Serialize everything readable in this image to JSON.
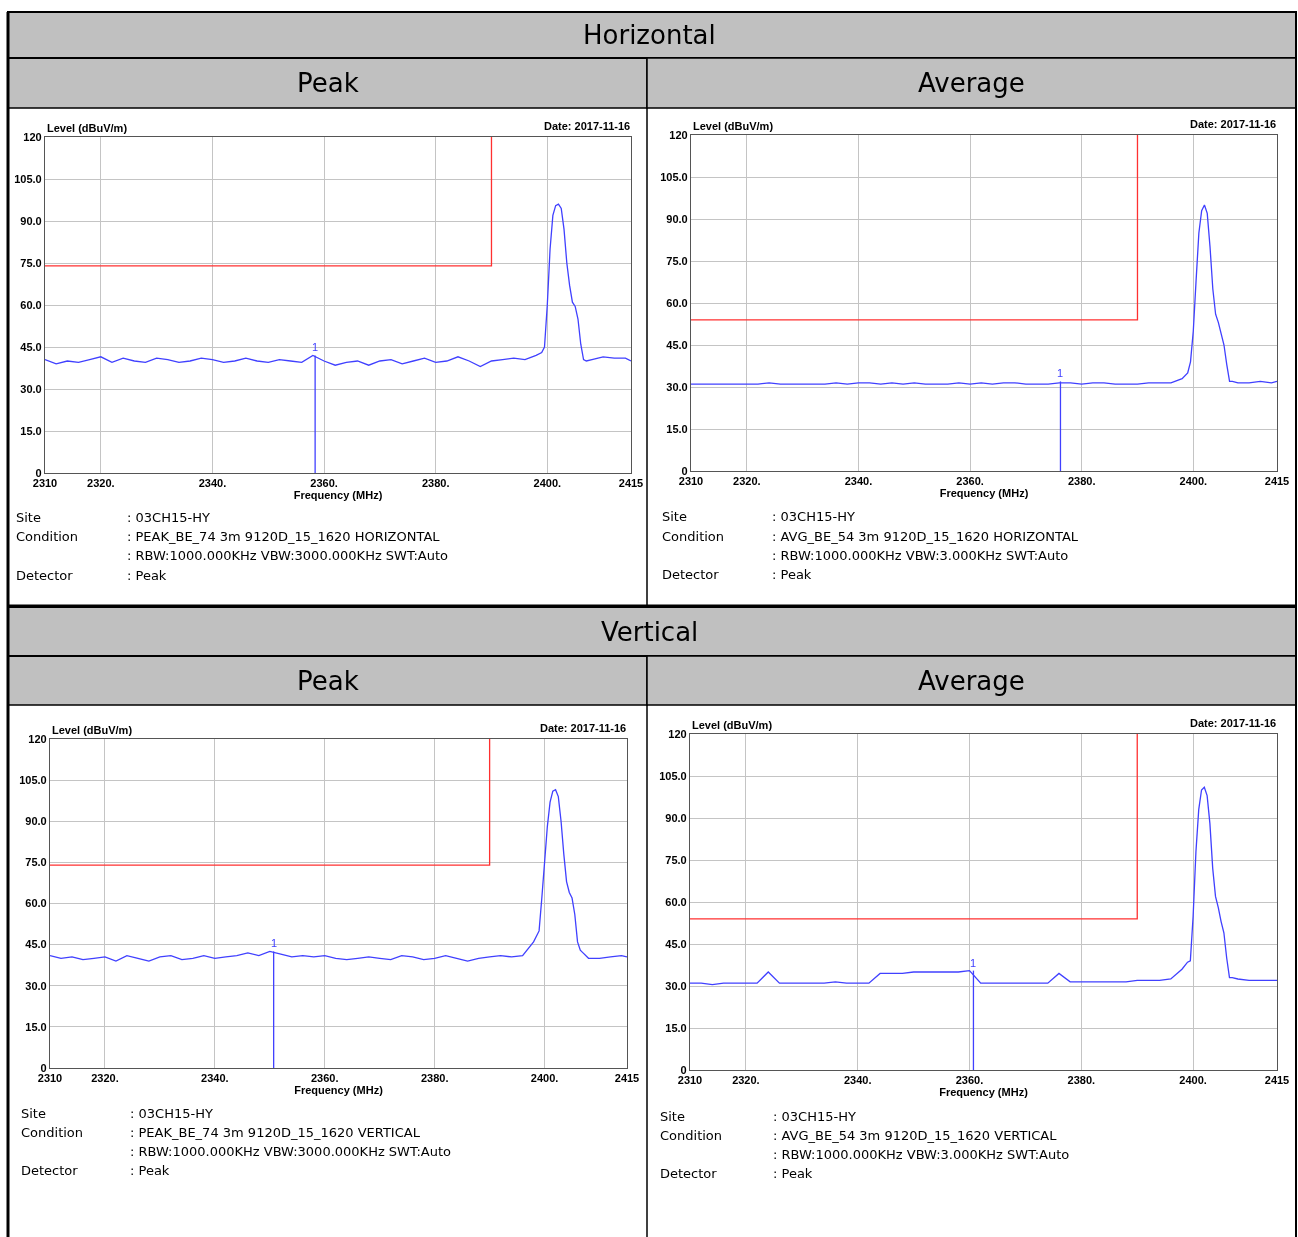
{
  "chart_data": [
    {
      "type": "line",
      "title": "Peak",
      "subtitle": "Horizontal",
      "xlabel": "Frequency (MHz)",
      "ylabel": "Level (dBuV/m)",
      "annotations": [
        "Date: 2017-11-16",
        "Site",
        ": 03CH15-HY",
        "Condition",
        ": PEAK_BE_74 3m 9120D_15_1620 HORIZONTAL",
        ": RBW:1000.000KHz VBW:3000.000KHz SWT:Auto",
        "Detector",
        ": Peak",
        {
          "text": "1",
          "x": 2358.4,
          "y": 42
        }
      ],
      "xlim": [
        2310,
        2415
      ],
      "xticks": [
        2310,
        {
          "value": 2320,
          "label": "2320."
        },
        {
          "value": 2340,
          "label": "2340."
        },
        {
          "value": 2360,
          "label": "2360."
        },
        {
          "value": 2380,
          "label": "2380."
        },
        {
          "value": 2400,
          "label": "2400."
        },
        2415
      ],
      "ylim": [
        0,
        120
      ],
      "yticks": [
        0,
        {
          "value": 15,
          "label": "15.0"
        },
        {
          "value": 30,
          "label": "30.0"
        },
        {
          "value": 45,
          "label": "45.0"
        },
        {
          "value": 60,
          "label": "60.0"
        },
        {
          "value": 75,
          "label": "75.0"
        },
        {
          "value": 90,
          "label": "90.0"
        },
        {
          "value": 105,
          "label": "105.0"
        },
        120
      ],
      "grid": true,
      "series": [
        {
          "color": "#4040ff",
          "x": [
            2310,
            2312,
            2314,
            2316,
            2318,
            2320,
            2322,
            2324,
            2326,
            2328,
            2330,
            2332,
            2334,
            2336,
            2338,
            2340,
            2342,
            2344,
            2346,
            2348,
            2350,
            2352,
            2354,
            2356,
            2358,
            2360,
            2362,
            2364,
            2366,
            2368,
            2370,
            2372,
            2374,
            2376,
            2378,
            2380,
            2382,
            2384,
            2386,
            2388,
            2390,
            2392,
            2394,
            2396,
            2398,
            2399,
            2399.5,
            2400,
            2400.5,
            2401,
            2401.5,
            2402,
            2402.5,
            2403,
            2403.5,
            2404,
            2404.5,
            2405,
            2405.5,
            2406,
            2406.5,
            2407,
            2408,
            2410,
            2412,
            2414,
            2415
          ],
          "values": [
            40.5,
            39,
            40,
            39.5,
            40.5,
            41.5,
            39.5,
            41,
            40,
            39.5,
            41,
            40.5,
            39.5,
            40,
            41,
            40.5,
            39.5,
            40,
            41,
            40,
            39.5,
            40.5,
            40,
            39.5,
            42,
            40,
            38.5,
            39.5,
            40,
            38.5,
            40,
            40.5,
            39,
            40,
            41,
            39.5,
            40,
            41.5,
            40,
            38,
            40,
            40.5,
            41,
            40.5,
            42,
            43,
            45,
            60,
            80,
            92,
            95.5,
            96,
            94.5,
            87,
            75,
            67,
            61,
            59.5,
            55,
            46,
            40.5,
            40,
            40.5,
            41.5,
            41,
            41,
            40
          ]
        },
        {
          "color": "#4040ff",
          "x": [
            2358.4,
            2358.4
          ],
          "values": [
            0,
            42
          ]
        },
        {
          "color": "#ff3030",
          "x": [
            2310,
            2390,
            2390
          ],
          "values": [
            74,
            74,
            120
          ]
        }
      ]
    },
    {
      "type": "line",
      "title": "Average",
      "xlabel": "Frequency (MHz)",
      "ylabel": "Level (dBuV/m)",
      "annotations": [
        "Date: 2017-11-16",
        "Site",
        ": 03CH15-HY",
        "Condition",
        ": AVG_BE_54 3m 9120D_15_1620 HORIZONTAL",
        ": RBW:1000.000KHz VBW:3.000KHz SWT:Auto",
        "Detector",
        ": Peak",
        {
          "text": "1",
          "x": 2376.2,
          "y": 32
        }
      ],
      "xlim": [
        2310,
        2415
      ],
      "xticks": [
        2310,
        {
          "value": 2320,
          "label": "2320."
        },
        {
          "value": 2340,
          "label": "2340."
        },
        {
          "value": 2360,
          "label": "2360."
        },
        {
          "value": 2380,
          "label": "2380."
        },
        {
          "value": 2400,
          "label": "2400."
        },
        2415
      ],
      "ylim": [
        0,
        120
      ],
      "yticks": [
        0,
        {
          "value": 15,
          "label": "15.0"
        },
        {
          "value": 30,
          "label": "30.0"
        },
        {
          "value": 45,
          "label": "45.0"
        },
        {
          "value": 60,
          "label": "60.0"
        },
        {
          "value": 75,
          "label": "75.0"
        },
        {
          "value": 90,
          "label": "90.0"
        },
        {
          "value": 105,
          "label": "105.0"
        },
        120
      ],
      "grid": true,
      "series": [
        {
          "color": "#4040ff",
          "x": [
            2310,
            2312,
            2314,
            2316,
            2318,
            2320,
            2322,
            2324,
            2326,
            2328,
            2330,
            2332,
            2334,
            2336,
            2338,
            2340,
            2342,
            2344,
            2346,
            2348,
            2350,
            2352,
            2354,
            2356,
            2358,
            2360,
            2362,
            2364,
            2366,
            2368,
            2370,
            2372,
            2374,
            2376,
            2378,
            2380,
            2382,
            2384,
            2386,
            2388,
            2390,
            2392,
            2394,
            2396,
            2398,
            2399,
            2399.5,
            2400,
            2400.5,
            2401,
            2401.5,
            2402,
            2402.5,
            2403,
            2403.5,
            2404,
            2404.5,
            2405,
            2405.5,
            2406,
            2406.5,
            2407,
            2408,
            2410,
            2412,
            2414,
            2415
          ],
          "values": [
            31,
            31,
            31,
            31,
            31,
            31,
            31,
            31.5,
            31,
            31,
            31,
            31,
            31,
            31.5,
            31,
            31.5,
            31.5,
            31,
            31.5,
            31,
            31.5,
            31,
            31,
            31,
            31.5,
            31,
            31.5,
            31,
            31.5,
            31.5,
            31,
            31,
            31,
            31.5,
            31.5,
            31,
            31.5,
            31.5,
            31,
            31,
            31,
            31.5,
            31.5,
            31.5,
            33,
            35,
            39,
            50,
            68,
            85,
            93,
            95,
            92,
            80,
            65,
            56,
            53,
            49,
            45,
            38,
            32,
            32,
            31.5,
            31.5,
            32,
            31.5,
            32
          ]
        },
        {
          "color": "#4040ff",
          "x": [
            2376.2,
            2376.2
          ],
          "values": [
            0,
            32
          ]
        },
        {
          "color": "#ff3030",
          "x": [
            2310,
            2390,
            2390
          ],
          "values": [
            54,
            54,
            120
          ]
        }
      ]
    },
    {
      "type": "line",
      "title": "Peak",
      "subtitle": "Vertical",
      "xlabel": "Frequency (MHz)",
      "ylabel": "Level (dBuV/m)",
      "annotations": [
        "Date: 2017-11-16",
        "Site",
        ": 03CH15-HY",
        "Condition",
        ": PEAK_BE_74 3m 9120D_15_1620 VERTICAL",
        ": RBW:1000.000KHz VBW:3000.000KHz SWT:Auto",
        "Detector",
        ": Peak",
        {
          "text": "1",
          "x": 2350.7,
          "y": 42.5
        }
      ],
      "xlim": [
        2310,
        2415
      ],
      "xticks": [
        2310,
        {
          "value": 2320,
          "label": "2320."
        },
        {
          "value": 2340,
          "label": "2340."
        },
        {
          "value": 2360,
          "label": "2360."
        },
        {
          "value": 2380,
          "label": "2380."
        },
        {
          "value": 2400,
          "label": "2400."
        },
        2415
      ],
      "ylim": [
        0,
        120
      ],
      "yticks": [
        0,
        {
          "value": 15,
          "label": "15.0"
        },
        {
          "value": 30,
          "label": "30.0"
        },
        {
          "value": 45,
          "label": "45.0"
        },
        {
          "value": 60,
          "label": "60.0"
        },
        {
          "value": 75,
          "label": "75.0"
        },
        {
          "value": 90,
          "label": "90.0"
        },
        {
          "value": 105,
          "label": "105.0"
        },
        120
      ],
      "grid": true,
      "series": [
        {
          "color": "#4040ff",
          "x": [
            2310,
            2312,
            2314,
            2316,
            2318,
            2320,
            2322,
            2324,
            2326,
            2328,
            2330,
            2332,
            2334,
            2336,
            2338,
            2340,
            2342,
            2344,
            2346,
            2348,
            2350,
            2352,
            2354,
            2356,
            2358,
            2360,
            2362,
            2364,
            2366,
            2368,
            2370,
            2372,
            2374,
            2376,
            2378,
            2380,
            2382,
            2384,
            2386,
            2388,
            2390,
            2392,
            2394,
            2396,
            2398,
            2399,
            2399.5,
            2400,
            2400.5,
            2401,
            2401.5,
            2402,
            2402.5,
            2403,
            2403.5,
            2404,
            2404.5,
            2405,
            2405.5,
            2406,
            2406.5,
            2407,
            2408,
            2410,
            2412,
            2414,
            2415
          ],
          "values": [
            41,
            40,
            40.5,
            39.5,
            40,
            40.5,
            39,
            41,
            40,
            39,
            40.5,
            41,
            39.5,
            40,
            41,
            40,
            40.5,
            41,
            42,
            41,
            42.5,
            41.5,
            40.5,
            41,
            40.5,
            41,
            40,
            39.5,
            40,
            40.5,
            40,
            39.5,
            41,
            40.5,
            39.5,
            40,
            41,
            40,
            39,
            40,
            40.5,
            41,
            40.5,
            41,
            46,
            50,
            62,
            75,
            88,
            97,
            101,
            101.5,
            99,
            90,
            78,
            68,
            64,
            62,
            56,
            46,
            43,
            42,
            40,
            40,
            40.5,
            41,
            40.5
          ]
        },
        {
          "color": "#4040ff",
          "x": [
            2350.7,
            2350.7
          ],
          "values": [
            0,
            42.5
          ]
        },
        {
          "color": "#ff3030",
          "x": [
            2310,
            2390,
            2390
          ],
          "values": [
            74,
            74,
            120
          ]
        }
      ]
    },
    {
      "type": "line",
      "title": "Average",
      "xlabel": "Frequency (MHz)",
      "ylabel": "Level (dBuV/m)",
      "annotations": [
        "Date: 2017-11-16",
        "Site",
        ": 03CH15-HY",
        "Condition",
        ": AVG_BE_54 3m 9120D_15_1620 VERTICAL",
        ": RBW:1000.000KHz VBW:3.000KHz SWT:Auto",
        "Detector",
        ": Peak",
        {
          "text": "1",
          "x": 2360.7,
          "y": 35.5
        }
      ],
      "xlim": [
        2310,
        2415
      ],
      "xticks": [
        2310,
        {
          "value": 2320,
          "label": "2320."
        },
        {
          "value": 2340,
          "label": "2340."
        },
        {
          "value": 2360,
          "label": "2360."
        },
        {
          "value": 2380,
          "label": "2380."
        },
        {
          "value": 2400,
          "label": "2400."
        },
        2415
      ],
      "ylim": [
        0,
        120
      ],
      "yticks": [
        0,
        {
          "value": 15,
          "label": "15.0"
        },
        {
          "value": 30,
          "label": "30.0"
        },
        {
          "value": 45,
          "label": "45.0"
        },
        {
          "value": 60,
          "label": "60.0"
        },
        {
          "value": 75,
          "label": "75.0"
        },
        {
          "value": 90,
          "label": "90.0"
        },
        {
          "value": 105,
          "label": "105.0"
        },
        120
      ],
      "grid": true,
      "series": [
        {
          "color": "#4040ff",
          "x": [
            2310,
            2312,
            2314,
            2316,
            2318,
            2320,
            2322,
            2324,
            2326,
            2328,
            2330,
            2332,
            2334,
            2336,
            2338,
            2340,
            2342,
            2344,
            2346,
            2348,
            2350,
            2352,
            2354,
            2356,
            2358,
            2360,
            2362,
            2364,
            2366,
            2368,
            2370,
            2372,
            2374,
            2376,
            2378,
            2380,
            2382,
            2384,
            2386,
            2388,
            2390,
            2392,
            2394,
            2396,
            2398,
            2399,
            2399.5,
            2400,
            2400.5,
            2401,
            2401.5,
            2402,
            2402.5,
            2403,
            2403.5,
            2404,
            2404.5,
            2405,
            2405.5,
            2406,
            2406.5,
            2407,
            2408,
            2410,
            2412,
            2414,
            2415
          ],
          "values": [
            31,
            31,
            30.5,
            31,
            31,
            31,
            31,
            35,
            31,
            31,
            31,
            31,
            31,
            31.5,
            31,
            31,
            31,
            34.5,
            34.5,
            34.5,
            35,
            35,
            35,
            35,
            35,
            35.5,
            31,
            31,
            31,
            31,
            31,
            31,
            31,
            34.5,
            31.5,
            31.5,
            31.5,
            31.5,
            31.5,
            31.5,
            32,
            32,
            32,
            32.5,
            36,
            38.5,
            39,
            55,
            78,
            93,
            100,
            101,
            98,
            88,
            72,
            62,
            58,
            53,
            49,
            40,
            33,
            33,
            32.5,
            32,
            32,
            32,
            32
          ]
        },
        {
          "color": "#4040ff",
          "x": [
            2360.7,
            2360.7
          ],
          "values": [
            0,
            35.5
          ]
        },
        {
          "color": "#ff3030",
          "x": [
            2310,
            2390,
            2390
          ],
          "values": [
            54,
            54,
            120
          ]
        }
      ]
    }
  ]
}
